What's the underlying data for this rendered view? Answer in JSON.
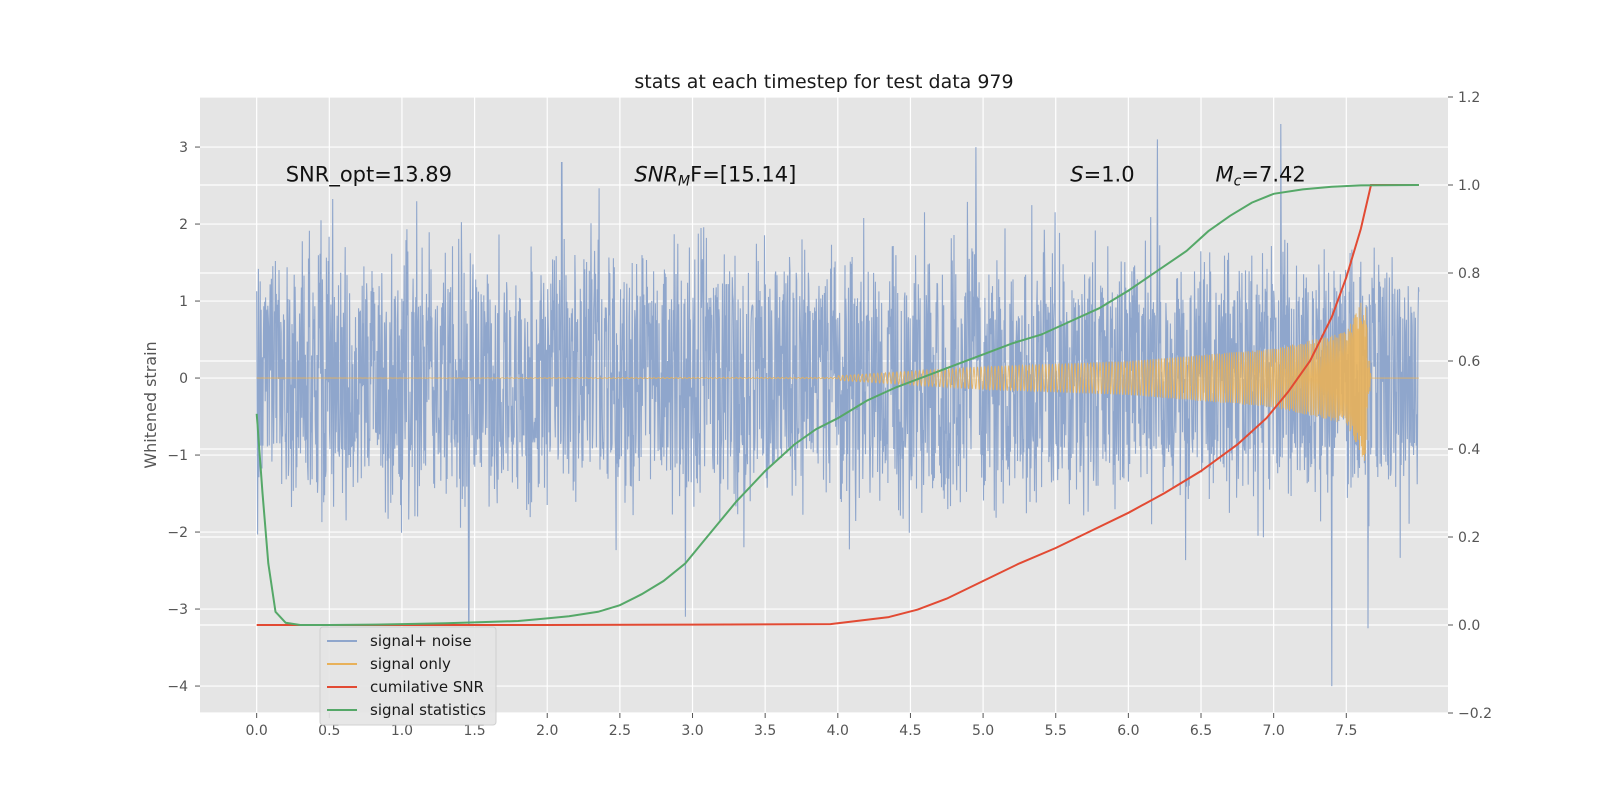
{
  "chart_data": {
    "type": "line",
    "title": "stats at each timestep for test data 979",
    "xlabel": "",
    "ylabel": "Whitened strain",
    "y2label": "",
    "xlim": [
      -0.39,
      8.2
    ],
    "ylim": [
      -4.35,
      3.65
    ],
    "y2lim": [
      -0.2,
      1.2
    ],
    "xticks": [
      0.0,
      0.5,
      1.0,
      1.5,
      2.0,
      2.5,
      3.0,
      3.5,
      4.0,
      4.5,
      5.0,
      5.5,
      6.0,
      6.5,
      7.0,
      7.5
    ],
    "yticks": [
      -4,
      -3,
      -2,
      -1,
      0,
      1,
      2,
      3
    ],
    "y2ticks": [
      -0.2,
      0.0,
      0.2,
      0.4,
      0.6,
      0.8,
      1.0,
      1.2
    ],
    "grid": true,
    "legend_placement": "lower-left",
    "annotations": [
      {
        "text": "SNR_opt=13.89",
        "x": 0.2,
        "y": 2.55
      },
      {
        "text": "SNR",
        "sub": "M",
        "after": "F=[15.14]",
        "x": 2.6,
        "y": 2.55
      },
      {
        "text": "S",
        "sub": "",
        "after": "=1.0",
        "x": 5.6,
        "y": 2.55
      },
      {
        "text": "M",
        "sub": "c",
        "after": "=7.42",
        "x": 6.6,
        "y": 2.55
      }
    ],
    "series": [
      {
        "name": "signal+ noise",
        "axis": "left",
        "color": "#8fa6cc",
        "kind": "noise",
        "x_range": [
          0.0,
          8.0
        ],
        "amplitude_band": [
          -1.5,
          1.8
        ],
        "extremes": [
          {
            "x": 1.46,
            "y": -3.2
          },
          {
            "x": 2.1,
            "y": 2.8
          },
          {
            "x": 2.95,
            "y": -3.1
          },
          {
            "x": 4.95,
            "y": 3.0
          },
          {
            "x": 6.2,
            "y": 3.1
          },
          {
            "x": 7.05,
            "y": 3.3
          },
          {
            "x": 7.4,
            "y": -4.0
          },
          {
            "x": 7.65,
            "y": -3.25
          }
        ]
      },
      {
        "name": "signal only",
        "axis": "left",
        "color": "#e8b15a",
        "kind": "chirp",
        "x_range": [
          0.0,
          7.67
        ],
        "envelope": [
          {
            "x": 4.0,
            "y": 0.03
          },
          {
            "x": 5.0,
            "y": 0.15
          },
          {
            "x": 6.0,
            "y": 0.22
          },
          {
            "x": 7.0,
            "y": 0.38
          },
          {
            "x": 7.5,
            "y": 0.6
          },
          {
            "x": 7.63,
            "y": 1.1
          },
          {
            "x": 7.67,
            "y": 0.0
          }
        ]
      },
      {
        "name": "cumilative SNR",
        "axis": "right",
        "color": "#e24a33",
        "x": [
          0.0,
          1.0,
          2.0,
          3.0,
          3.95,
          4.1,
          4.35,
          4.55,
          4.75,
          5.0,
          5.25,
          5.5,
          5.75,
          6.0,
          6.25,
          6.5,
          6.75,
          6.95,
          7.1,
          7.25,
          7.4,
          7.5,
          7.6,
          7.67,
          8.0
        ],
        "values": [
          0.0,
          0.0,
          0.0,
          0.001,
          0.002,
          0.008,
          0.018,
          0.035,
          0.06,
          0.1,
          0.14,
          0.175,
          0.215,
          0.255,
          0.3,
          0.35,
          0.41,
          0.47,
          0.53,
          0.6,
          0.7,
          0.79,
          0.9,
          1.0,
          1.0
        ]
      },
      {
        "name": "signal statistics",
        "axis": "right",
        "color": "#55a868",
        "x": [
          0.0,
          0.04,
          0.08,
          0.13,
          0.2,
          0.3,
          0.5,
          0.8,
          1.0,
          1.3,
          1.5,
          1.8,
          2.0,
          2.15,
          2.35,
          2.5,
          2.65,
          2.8,
          2.95,
          3.1,
          3.3,
          3.5,
          3.7,
          3.85,
          4.0,
          4.2,
          4.4,
          4.6,
          4.8,
          5.0,
          5.2,
          5.4,
          5.6,
          5.8,
          6.0,
          6.2,
          6.4,
          6.55,
          6.7,
          6.85,
          7.0,
          7.2,
          7.4,
          7.6,
          8.0
        ],
        "values": [
          0.48,
          0.3,
          0.14,
          0.03,
          0.005,
          0.0,
          0.0,
          0.001,
          0.002,
          0.004,
          0.006,
          0.009,
          0.015,
          0.02,
          0.03,
          0.045,
          0.07,
          0.1,
          0.14,
          0.2,
          0.28,
          0.35,
          0.41,
          0.445,
          0.47,
          0.51,
          0.54,
          0.565,
          0.59,
          0.615,
          0.64,
          0.66,
          0.69,
          0.72,
          0.76,
          0.805,
          0.85,
          0.895,
          0.93,
          0.96,
          0.98,
          0.99,
          0.996,
          0.999,
          1.0
        ]
      }
    ]
  }
}
